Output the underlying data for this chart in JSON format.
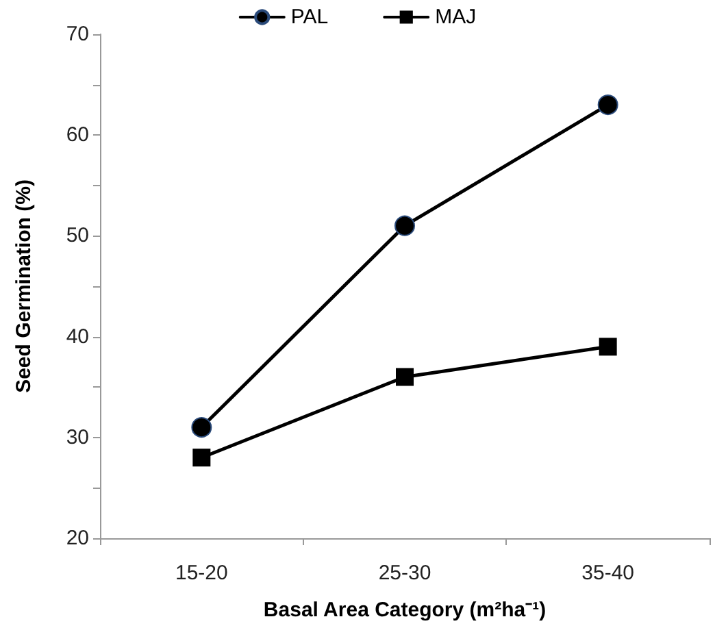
{
  "chart_data": {
    "type": "line",
    "xlabel": "Basal Area Category (m²ha⁻¹)",
    "ylabel": "Seed Germination (%)",
    "categories": [
      "15-20",
      "25-30",
      "35-40"
    ],
    "series": [
      {
        "name": "PAL",
        "color": "#000000",
        "marker": "circle",
        "values": [
          31,
          51,
          63
        ]
      },
      {
        "name": "MAJ",
        "color": "#000000",
        "marker": "square",
        "values": [
          28,
          36,
          39
        ]
      }
    ],
    "ylim": [
      20,
      70
    ],
    "yticks": [
      20,
      {
        "value": 25,
        "label": null
      },
      30,
      {
        "value": 35,
        "label": null
      },
      40,
      {
        "value": 45,
        "label": null
      },
      50,
      {
        "value": 55,
        "label": null
      },
      60,
      {
        "value": 65,
        "label": null
      },
      70
    ],
    "grid": false,
    "legend": "top",
    "line_style": "solid"
  }
}
